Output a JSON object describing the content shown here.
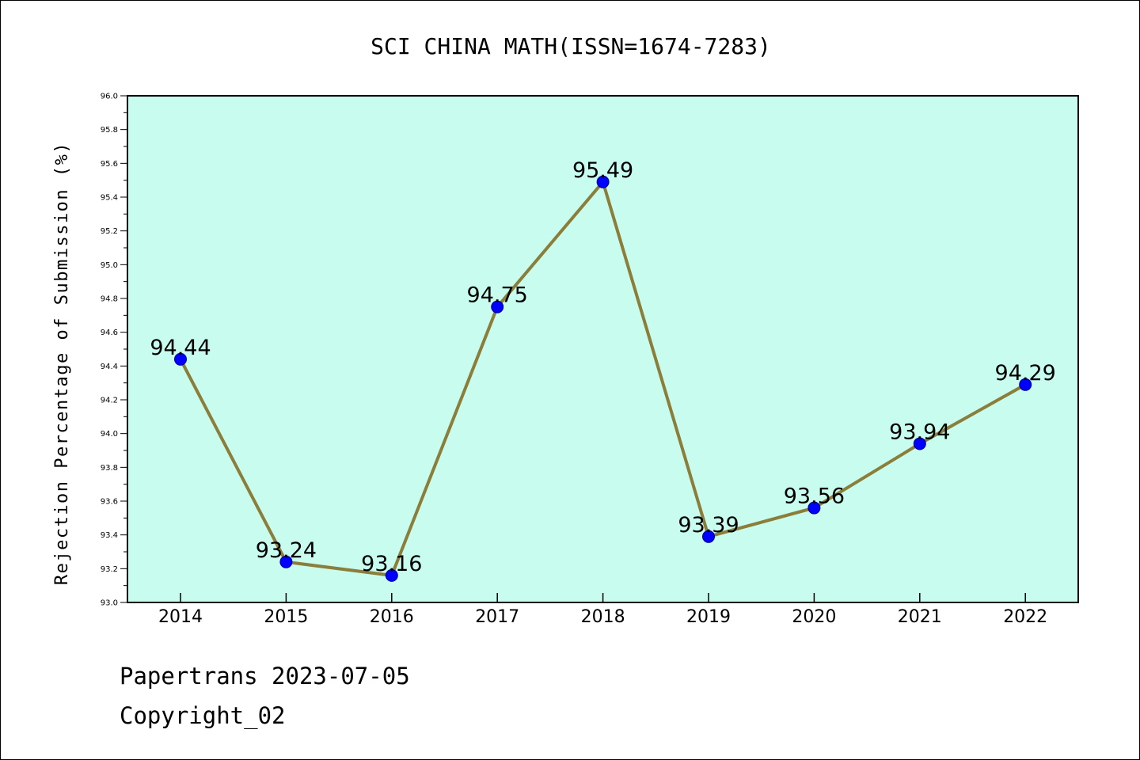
{
  "chart_data": {
    "type": "line",
    "title": "SCI CHINA MATH(ISSN=1674-7283)",
    "xlabel": "",
    "ylabel": "Rejection Percentage of Submission (%)",
    "categories": [
      "2014",
      "2015",
      "2016",
      "2017",
      "2018",
      "2019",
      "2020",
      "2021",
      "2022"
    ],
    "series": [
      {
        "values": [
          94.44,
          93.24,
          93.16,
          94.75,
          95.49,
          93.39,
          93.56,
          93.94,
          94.29
        ]
      }
    ],
    "data_labels": [
      "94.44",
      "93.24",
      "93.16",
      "94.75",
      "95.49",
      "93.39",
      "93.56",
      "93.94",
      "94.29"
    ],
    "ylim": [
      93.0,
      96.0
    ],
    "yticks": [
      "93.0",
      "93.2",
      "93.4",
      "93.6",
      "93.8",
      "94.0",
      "94.2",
      "94.4",
      "94.6",
      "94.8",
      "95.0",
      "95.2",
      "95.4",
      "95.6",
      "95.8",
      "96.0"
    ],
    "grid": false,
    "colors": {
      "plot_background": "#c8fcee",
      "line": "#8b7d3a",
      "marker": "#0000ff",
      "marker_edge": "#00008b",
      "frame": "#000000",
      "text": "#000000"
    }
  },
  "footer": {
    "line1": "Papertrans 2023-07-05",
    "line2": "Copyright_02"
  }
}
